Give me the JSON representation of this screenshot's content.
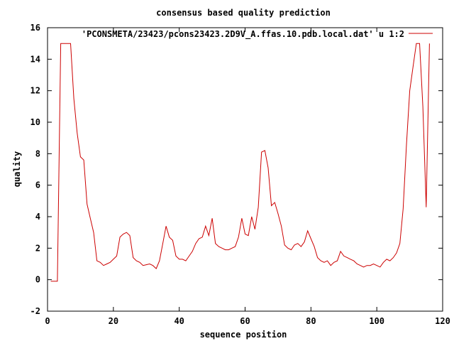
{
  "chart_data": {
    "type": "line",
    "title": "consensus based quality prediction",
    "xlabel": "sequence position",
    "ylabel": "quality",
    "xlim": [
      0,
      120
    ],
    "ylim": [
      -2,
      16
    ],
    "x_ticks": [
      "0",
      "20",
      "40",
      "60",
      "80",
      "100",
      "120"
    ],
    "y_ticks": [
      "-2",
      "0",
      "2",
      "4",
      "6",
      "8",
      "10",
      "12",
      "14",
      "16"
    ],
    "grid": false,
    "legend_position": "top-right",
    "series": [
      {
        "name": "'PCONSMETA/23423/pcons23423.2D9V_A.ffas.10.pdb.local.dat' u 1:2",
        "color": "#cc0000",
        "x": [
          1,
          2,
          3,
          4,
          5,
          6,
          7,
          8,
          9,
          10,
          11,
          12,
          13,
          14,
          15,
          16,
          17,
          18,
          19,
          20,
          21,
          22,
          23,
          24,
          25,
          26,
          27,
          28,
          29,
          30,
          31,
          32,
          33,
          34,
          35,
          36,
          37,
          38,
          39,
          40,
          41,
          42,
          43,
          44,
          45,
          46,
          47,
          48,
          49,
          50,
          51,
          52,
          53,
          54,
          55,
          56,
          57,
          58,
          59,
          60,
          61,
          62,
          63,
          64,
          65,
          66,
          67,
          68,
          69,
          70,
          71,
          72,
          73,
          74,
          75,
          76,
          77,
          78,
          79,
          80,
          81,
          82,
          83,
          84,
          85,
          86,
          87,
          88,
          89,
          90,
          91,
          92,
          93,
          94,
          95,
          96,
          97,
          98,
          99,
          100,
          101,
          102,
          103,
          104,
          105,
          106,
          107,
          108,
          109,
          110,
          111,
          112,
          113,
          114,
          115,
          116
        ],
        "y": [
          -0.1,
          -0.1,
          -0.1,
          15.0,
          15.0,
          15.0,
          15.0,
          11.5,
          9.3,
          7.8,
          7.6,
          4.8,
          3.9,
          3.0,
          1.2,
          1.1,
          0.9,
          1.0,
          1.1,
          1.3,
          1.5,
          2.7,
          2.9,
          3.0,
          2.8,
          1.4,
          1.2,
          1.1,
          0.9,
          0.95,
          1.0,
          0.9,
          0.7,
          1.2,
          2.3,
          3.4,
          2.7,
          2.5,
          1.5,
          1.3,
          1.3,
          1.2,
          1.5,
          1.8,
          2.3,
          2.6,
          2.7,
          3.4,
          2.8,
          3.9,
          2.3,
          2.1,
          2.0,
          1.9,
          1.9,
          2.0,
          2.1,
          2.7,
          3.9,
          2.9,
          2.8,
          4.0,
          3.2,
          4.6,
          8.1,
          8.2,
          7.1,
          4.7,
          4.9,
          4.2,
          3.4,
          2.2,
          2.0,
          1.9,
          2.2,
          2.3,
          2.1,
          2.4,
          3.1,
          2.6,
          2.1,
          1.4,
          1.2,
          1.1,
          1.2,
          0.9,
          1.1,
          1.2,
          1.8,
          1.5,
          1.4,
          1.3,
          1.2,
          1.0,
          0.9,
          0.8,
          0.9,
          0.9,
          1.0,
          0.9,
          0.8,
          1.1,
          1.3,
          1.2,
          1.4,
          1.7,
          2.3,
          4.5,
          8.5,
          12.0,
          13.5,
          15.0,
          15.0,
          11.0,
          4.6,
          15.0
        ]
      }
    ]
  }
}
